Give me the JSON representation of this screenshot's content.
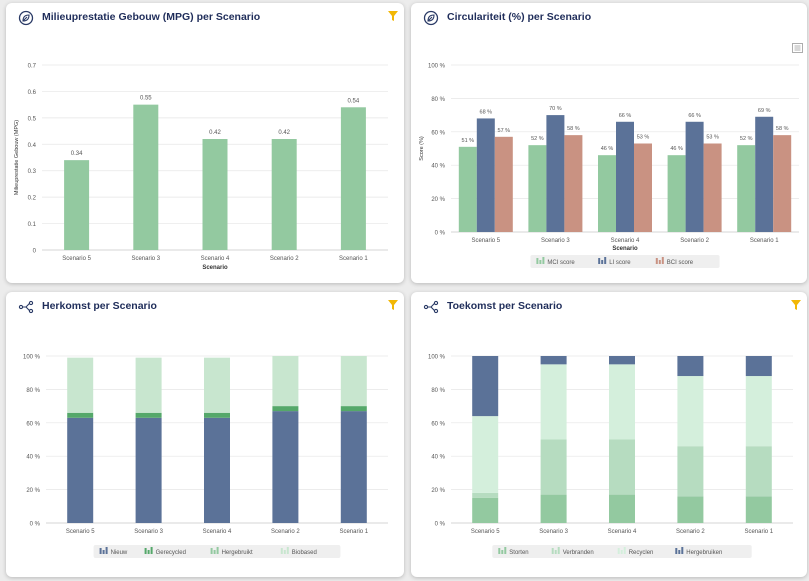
{
  "cards": [
    {
      "title": "Milieuprestatie Gebouw (MPG) per Scenario",
      "icon": "leaf-circle-icon",
      "action_icon": "filter-icon"
    },
    {
      "title": "Circulariteit (%) per Scenario",
      "icon": "leaf-circle-icon",
      "action_icon": "menu-icon"
    },
    {
      "title": "Herkomst per Scenario",
      "icon": "flow-network-icon",
      "action_icon": "filter-icon"
    },
    {
      "title": "Toekomst per Scenario",
      "icon": "flow-network-icon",
      "action_icon": "filter-icon"
    }
  ],
  "colors": {
    "title": "#1f2d5a",
    "filter": "#f2b705",
    "green": "#93c9a0",
    "blue": "#5b7298",
    "salmon": "#c99282",
    "grid": "#e6e6e6",
    "text": "#555555"
  },
  "chart_data": [
    {
      "type": "bar",
      "categories": [
        "Scenario 5",
        "Scenario 3",
        "Scenario 4",
        "Scenario 2",
        "Scenario 1"
      ],
      "values": [
        0.34,
        0.55,
        0.42,
        0.42,
        0.54
      ],
      "value_labels": [
        "0.34",
        "0.55",
        "0.42",
        "0.42",
        "0.54"
      ],
      "ylim": [
        0,
        0.7
      ],
      "yticks": [
        "0",
        "0.1",
        "0.2",
        "0.3",
        "0.4",
        "0.5",
        "0.6",
        "0.7"
      ],
      "xlabel": "Scenario",
      "ylabel": "Milieuprestatie Gebouw (MPG)",
      "color": "#93c9a0",
      "grid": true
    },
    {
      "type": "bar",
      "categories": [
        "Scenario 5",
        "Scenario 3",
        "Scenario 4",
        "Scenario 2",
        "Scenario 1"
      ],
      "series": [
        {
          "name": "MCI score",
          "values": [
            51,
            52,
            46,
            46,
            52
          ],
          "labels": [
            "51 %",
            "52 %",
            "46 %",
            "46 %",
            "52 %"
          ],
          "color": "#93c9a0"
        },
        {
          "name": "LI score",
          "values": [
            68,
            70,
            66,
            66,
            69
          ],
          "labels": [
            "68 %",
            "70 %",
            "66 %",
            "66 %",
            "69 %"
          ],
          "color": "#5b7298"
        },
        {
          "name": "BCI score",
          "values": [
            57,
            58,
            53,
            53,
            58
          ],
          "labels": [
            "57 %",
            "58 %",
            "53 %",
            "53 %",
            "58 %"
          ],
          "color": "#c99282"
        }
      ],
      "ylim": [
        0,
        100
      ],
      "yticks": [
        "0 %",
        "20 %",
        "40 %",
        "60 %",
        "80 %",
        "100 %"
      ],
      "xlabel": "Scenario",
      "ylabel": "Score (%)",
      "legend": "bottom",
      "grid": true
    },
    {
      "type": "bar",
      "stacked": true,
      "categories": [
        "Scenario 5",
        "Scenario 3",
        "Scenario 4",
        "Scenario 2",
        "Scenario 1"
      ],
      "series": [
        {
          "name": "Nieuw",
          "values": [
            63,
            63,
            63,
            67,
            67
          ],
          "color": "#5b7298"
        },
        {
          "name": "Gerecycled",
          "values": [
            3,
            3,
            3,
            3,
            3
          ],
          "color": "#55a86a"
        },
        {
          "name": "Hergebruikt",
          "values": [
            0,
            0,
            0,
            0,
            0
          ],
          "color": "#93c9a0"
        },
        {
          "name": "Biobased",
          "values": [
            33,
            33,
            33,
            30,
            30
          ],
          "color": "#c8e6cf"
        }
      ],
      "ylim": [
        0,
        100
      ],
      "yticks": [
        "0 %",
        "20 %",
        "40 %",
        "60 %",
        "80 %",
        "100 %"
      ],
      "legend": "bottom",
      "grid": true
    },
    {
      "type": "bar",
      "stacked": true,
      "categories": [
        "Scenario 5",
        "Scenario 3",
        "Scenario 4",
        "Scenario 2",
        "Scenario 1"
      ],
      "series": [
        {
          "name": "Storten",
          "values": [
            15,
            17,
            17,
            16,
            16
          ],
          "color": "#93c9a0"
        },
        {
          "name": "Verbranden",
          "values": [
            3,
            33,
            33,
            30,
            30
          ],
          "color": "#b6dcc0"
        },
        {
          "name": "Recyclen",
          "values": [
            46,
            45,
            45,
            42,
            42
          ],
          "color": "#d4efdc"
        },
        {
          "name": "Hergebruiken",
          "values": [
            36,
            5,
            5,
            12,
            12
          ],
          "color": "#5b7298"
        }
      ],
      "ylim": [
        0,
        100
      ],
      "yticks": [
        "0 %",
        "20 %",
        "40 %",
        "60 %",
        "80 %",
        "100 %"
      ],
      "legend": "bottom",
      "grid": true
    }
  ]
}
